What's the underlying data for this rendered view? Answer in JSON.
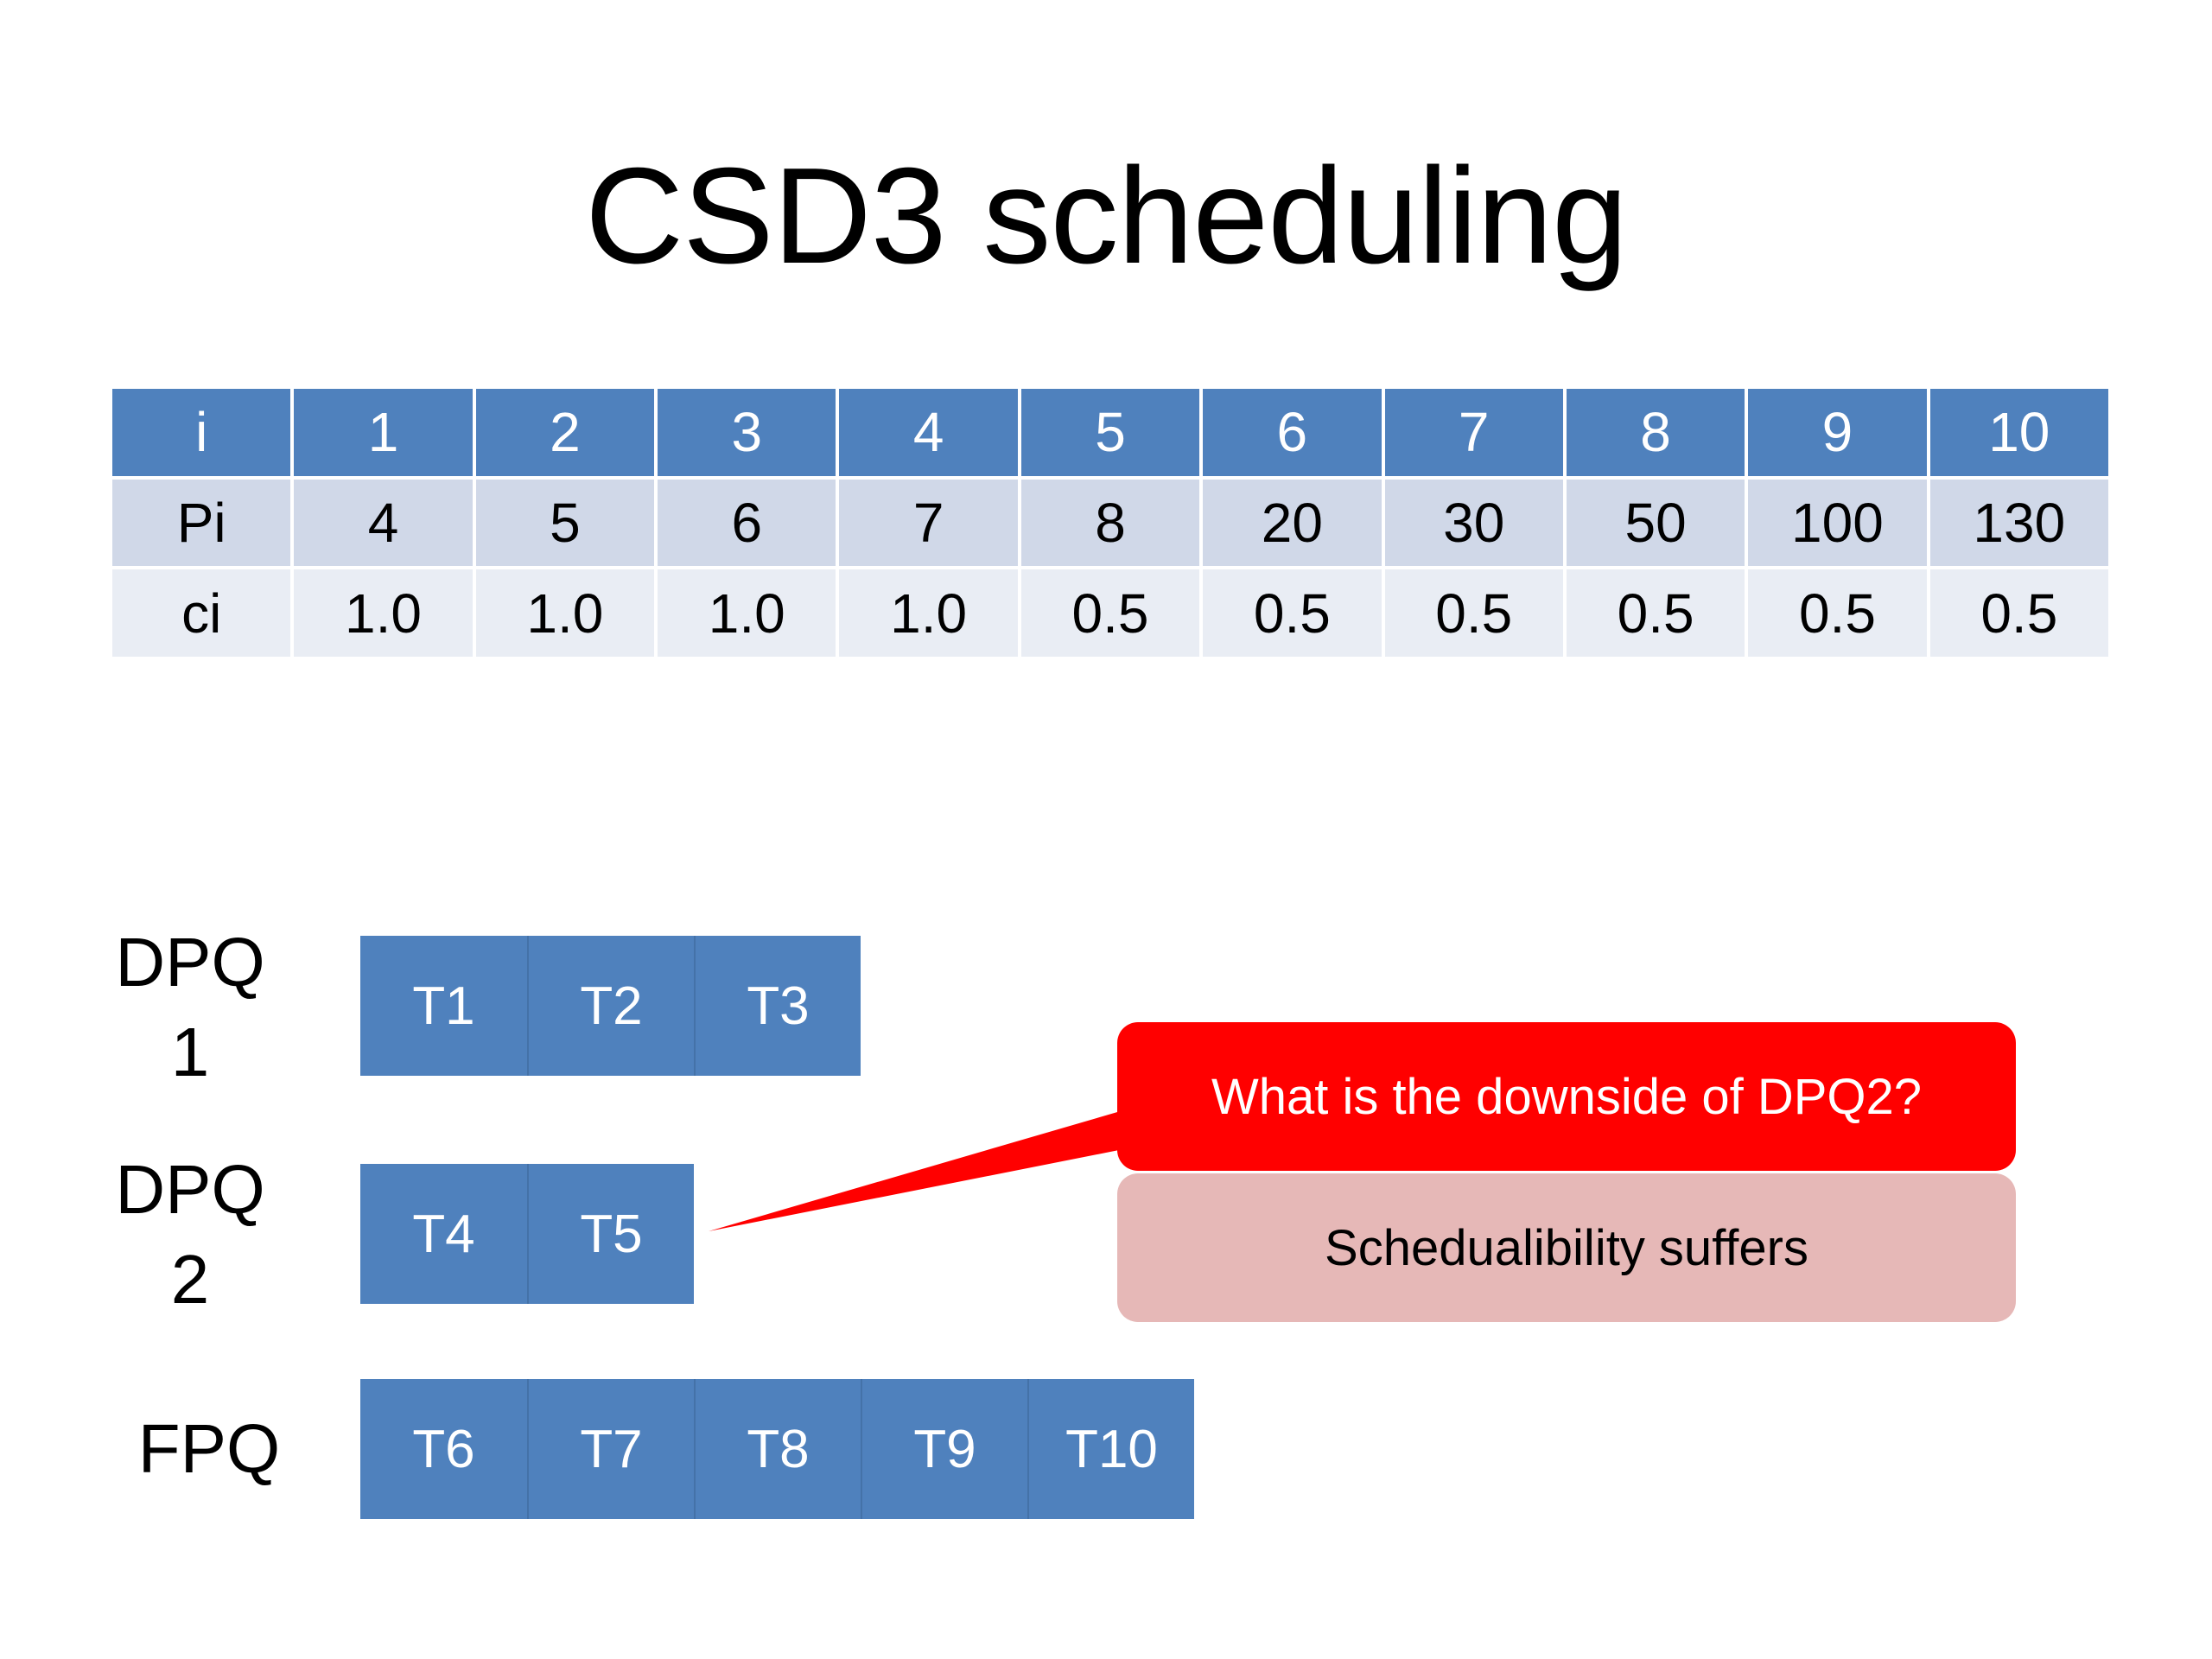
{
  "title": "CSD3 scheduling",
  "table": {
    "header": [
      "i",
      "1",
      "2",
      "3",
      "4",
      "5",
      "6",
      "7",
      "8",
      "9",
      "10"
    ],
    "rows": [
      [
        "Pi",
        "4",
        "5",
        "6",
        "7",
        "8",
        "20",
        "30",
        "50",
        "100",
        "130"
      ],
      [
        "ci",
        "1.0",
        "1.0",
        "1.0",
        "1.0",
        "0.5",
        "0.5",
        "0.5",
        "0.5",
        "0.5",
        "0.5"
      ]
    ]
  },
  "queues": [
    {
      "label_line1": "DPQ",
      "label_line2": "1",
      "tasks": [
        "T1",
        "T2",
        "T3"
      ]
    },
    {
      "label_line1": "DPQ",
      "label_line2": "2",
      "tasks": [
        "T4",
        "T5"
      ]
    },
    {
      "label_line1": "FPQ",
      "label_line2": "",
      "tasks": [
        "T6",
        "T7",
        "T8",
        "T9",
        "T10"
      ]
    }
  ],
  "callout": {
    "question": "What is the downside of DPQ2?",
    "answer": "Schedualibility suffers"
  },
  "colors": {
    "table_header": "#4f81bd",
    "table_row_1": "#d0d8e8",
    "table_row_2": "#e9edf4",
    "task_box": "#4f81bd",
    "callout": "#ff0000",
    "answer": "#e6b8b7"
  }
}
